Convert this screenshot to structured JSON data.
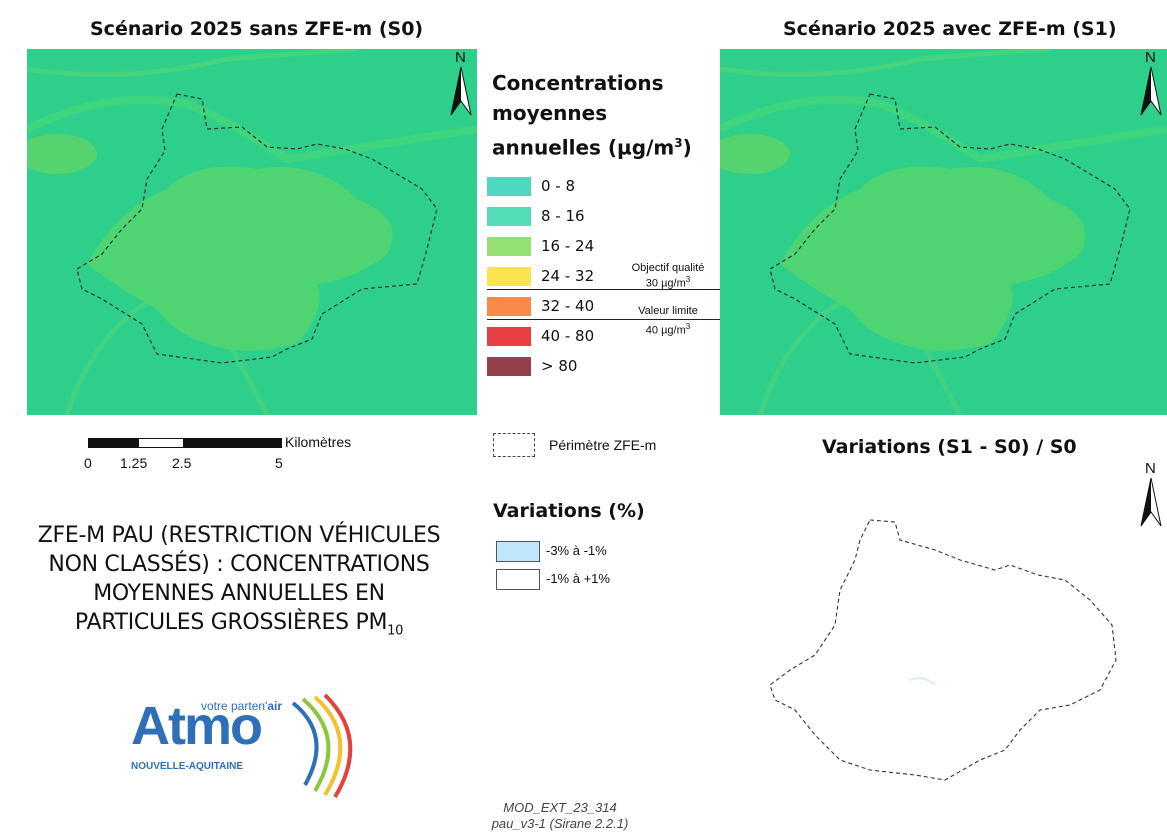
{
  "maps": {
    "s0_title": "Scénario 2025 sans ZFE-m (S0)",
    "s1_title": "Scénario 2025 avec ZFE-m (S1)",
    "variation_title": "Variations (S1 - S0) / S0",
    "north_label": "N"
  },
  "concentration_legend": {
    "title_line1": "Concentrations",
    "title_line2": "moyennes",
    "title_line3": "annuelles (µg/m",
    "title_sup": "3",
    "title_close": ")",
    "classes": [
      {
        "label": "0 - 8",
        "color": "#4fd8bf"
      },
      {
        "label": "8 - 16",
        "color": "#54dbb8"
      },
      {
        "label": "16 - 24",
        "color": "#95e073"
      },
      {
        "label": "24 - 32",
        "color": "#fde34d"
      },
      {
        "label": "32 - 40",
        "color": "#f98a48"
      },
      {
        "label": "40 - 80",
        "color": "#e84042"
      },
      {
        "label": "> 80",
        "color": "#95414c"
      }
    ],
    "quality_objective_line1": "Objectif qualité",
    "quality_objective_line2": "30 µg/m",
    "limit_value_line1": "Valeur limite",
    "limit_value_line2": "40 µg/m",
    "unit_sup": "3"
  },
  "scale_bar": {
    "unit": "Kilomètres",
    "ticks": [
      "0",
      "1.25",
      "2.5",
      "5"
    ]
  },
  "perimeter_legend": {
    "label": "Périmètre ZFE-m"
  },
  "variation_legend": {
    "title": "Variations (%)",
    "classes": [
      {
        "label": "-3% à -1%",
        "color": "#bfe6fb"
      },
      {
        "label": "-1% à +1%",
        "color": "#ffffff"
      }
    ]
  },
  "main_title": {
    "line1": "ZFE-M PAU (RESTRICTION VÉHICULES",
    "line2": "NON CLASSÉS) : CONCENTRATIONS",
    "line3": "MOYENNES ANNUELLES EN",
    "line4": "PARTICULES GROSSIÈRES PM",
    "line4_sub": "10"
  },
  "logo": {
    "tagline_prefix": "votre parten'",
    "tagline_suffix": "air",
    "name": "Atmo",
    "region": "NOUVELLE-AQUITAINE",
    "colors": {
      "blue": "#2f6fb7",
      "green": "#8cc63f",
      "yellow": "#f2c12e",
      "red": "#e4423a"
    }
  },
  "footer": {
    "line1": "MOD_EXT_23_314",
    "line2": "pau_v3-1 (Sirane 2.2.1)"
  }
}
